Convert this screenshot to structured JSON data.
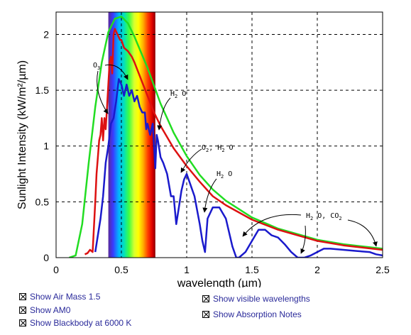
{
  "chart_data": {
    "type": "line",
    "xlabel": "wavelength (µm)",
    "ylabel": "Sunlight Intensity (kW/m²/µm)",
    "xlim": [
      0,
      2.5
    ],
    "ylim": [
      0,
      2.2
    ],
    "xticks": [
      0,
      0.5,
      1,
      1.5,
      2,
      2.5
    ],
    "xtick_labels": [
      "0",
      "0.5",
      "1",
      "1.5",
      "2",
      "2.5"
    ],
    "yticks": [
      0,
      0.5,
      1,
      1.5,
      2
    ],
    "ytick_labels": [
      "0",
      "0.5",
      "1",
      "1.5",
      "2"
    ],
    "grid": "dashed",
    "visible_band": [
      0.4,
      0.76
    ],
    "series": [
      {
        "key": "blackbody",
        "color": "#22dd22",
        "x": [
          0.1,
          0.15,
          0.2,
          0.25,
          0.3,
          0.35,
          0.4,
          0.45,
          0.5,
          0.55,
          0.6,
          0.7,
          0.8,
          0.9,
          1.0,
          1.1,
          1.2,
          1.3,
          1.5,
          1.7,
          2.0,
          2.2,
          2.5
        ],
        "y": [
          0.0,
          0.02,
          0.3,
          0.85,
          1.35,
          1.75,
          2.02,
          2.14,
          2.16,
          2.1,
          1.98,
          1.7,
          1.38,
          1.12,
          0.91,
          0.74,
          0.61,
          0.51,
          0.36,
          0.26,
          0.16,
          0.12,
          0.08
        ]
      },
      {
        "key": "am0",
        "color": "#dd1111",
        "x": [
          0.22,
          0.24,
          0.26,
          0.28,
          0.3,
          0.31,
          0.32,
          0.33,
          0.34,
          0.35,
          0.36,
          0.37,
          0.38,
          0.39,
          0.4,
          0.41,
          0.42,
          0.43,
          0.44,
          0.45,
          0.47,
          0.49,
          0.5,
          0.52,
          0.55,
          0.58,
          0.6,
          0.65,
          0.7,
          0.75,
          0.8,
          0.9,
          1.0,
          1.1,
          1.2,
          1.3,
          1.5,
          1.7,
          2.0,
          2.2,
          2.5
        ],
        "y": [
          0.03,
          0.04,
          0.07,
          0.05,
          0.5,
          0.75,
          0.9,
          1.05,
          1.1,
          1.25,
          1.05,
          1.25,
          1.15,
          1.35,
          1.55,
          1.75,
          1.8,
          1.65,
          2.0,
          2.05,
          2.0,
          1.95,
          1.95,
          1.88,
          1.85,
          1.8,
          1.75,
          1.6,
          1.45,
          1.3,
          1.18,
          0.98,
          0.82,
          0.68,
          0.55,
          0.47,
          0.34,
          0.25,
          0.15,
          0.11,
          0.07
        ]
      },
      {
        "key": "am15",
        "color": "#1a1acc",
        "x": [
          0.3,
          0.32,
          0.34,
          0.36,
          0.38,
          0.4,
          0.42,
          0.44,
          0.46,
          0.48,
          0.5,
          0.52,
          0.54,
          0.56,
          0.58,
          0.6,
          0.62,
          0.64,
          0.66,
          0.68,
          0.69,
          0.7,
          0.72,
          0.74,
          0.76,
          0.77,
          0.78,
          0.8,
          0.82,
          0.85,
          0.88,
          0.9,
          0.92,
          0.94,
          0.96,
          0.98,
          1.0,
          1.03,
          1.06,
          1.1,
          1.12,
          1.14,
          1.16,
          1.2,
          1.25,
          1.3,
          1.35,
          1.38,
          1.4,
          1.45,
          1.5,
          1.55,
          1.6,
          1.65,
          1.7,
          1.75,
          1.8,
          1.85,
          1.9,
          1.95,
          2.0,
          2.05,
          2.1,
          2.2,
          2.3,
          2.4,
          2.45,
          2.5
        ],
        "y": [
          0.05,
          0.2,
          0.35,
          0.55,
          0.85,
          1.0,
          1.2,
          1.25,
          1.4,
          1.6,
          1.55,
          1.45,
          1.55,
          1.45,
          1.5,
          1.4,
          1.45,
          1.35,
          1.3,
          1.3,
          1.15,
          1.2,
          1.1,
          1.2,
          0.8,
          1.1,
          1.05,
          0.9,
          0.85,
          0.75,
          0.55,
          0.55,
          0.3,
          0.45,
          0.6,
          0.7,
          0.75,
          0.65,
          0.55,
          0.3,
          0.15,
          0.05,
          0.35,
          0.45,
          0.45,
          0.35,
          0.1,
          0.0,
          0.0,
          0.05,
          0.15,
          0.25,
          0.25,
          0.2,
          0.18,
          0.12,
          0.05,
          0.0,
          0.0,
          0.02,
          0.05,
          0.08,
          0.08,
          0.07,
          0.06,
          0.05,
          0.03,
          0.02
        ]
      }
    ],
    "annotations": [
      {
        "text": "O3",
        "sub": "3"
      },
      {
        "text": "H2 O",
        "sub": "2"
      },
      {
        "text": "O2, H2 O"
      },
      {
        "text": "H2 O"
      },
      {
        "text": "H2 O, CO2"
      }
    ]
  },
  "labels": {
    "note_o3": "O",
    "note_o3_sub": "3",
    "note_h2o_a": "H",
    "note_h2o_a_sub": "2",
    "note_h2o_a_tail": " O",
    "note_o2_h2o_a": "O",
    "note_o2_h2o_a_sub": "2",
    "note_o2_h2o_b": ", H",
    "note_o2_h2o_b_sub": "2",
    "note_o2_h2o_c": " O",
    "note_h2o_b": "H",
    "note_h2o_b_sub": "2",
    "note_h2o_b_tail": " O",
    "note_h2o_co2_a": "H",
    "note_h2o_co2_a_sub": "2",
    "note_h2o_co2_b": " O, CO",
    "note_h2o_co2_b_sub": "2"
  },
  "controls": {
    "air_mass": "Show Air Mass 1.5",
    "am0": "Show AM0",
    "blackbody": "Show Blackbody at 6000 K",
    "visible": "Show visible wavelengths",
    "absorption": "Show Absorption Notes"
  }
}
